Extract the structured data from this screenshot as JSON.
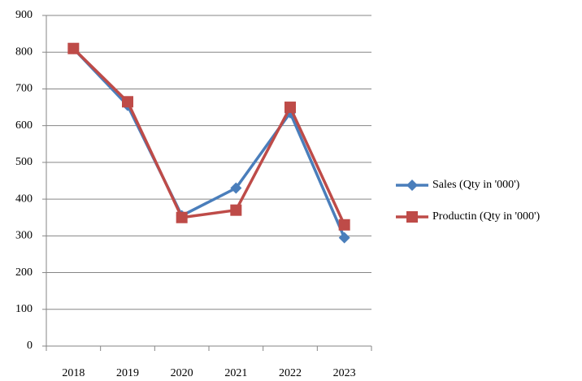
{
  "chart_data": {
    "type": "line",
    "categories": [
      "2018",
      "2019",
      "2020",
      "2021",
      "2022",
      "2023"
    ],
    "series": [
      {
        "name": "Sales  (Qty in '000')",
        "color": "#4a7ebb",
        "marker": "diamond",
        "values": [
          810,
          655,
          355,
          430,
          635,
          295
        ]
      },
      {
        "name": "Productin  (Qty in '000')",
        "color": "#be4b48",
        "marker": "square",
        "values": [
          810,
          665,
          350,
          370,
          650,
          330
        ]
      }
    ],
    "ylim": [
      0,
      900
    ],
    "yticks": [
      0,
      100,
      200,
      300,
      400,
      500,
      600,
      700,
      800,
      900
    ],
    "grid": true,
    "legend": "right"
  }
}
